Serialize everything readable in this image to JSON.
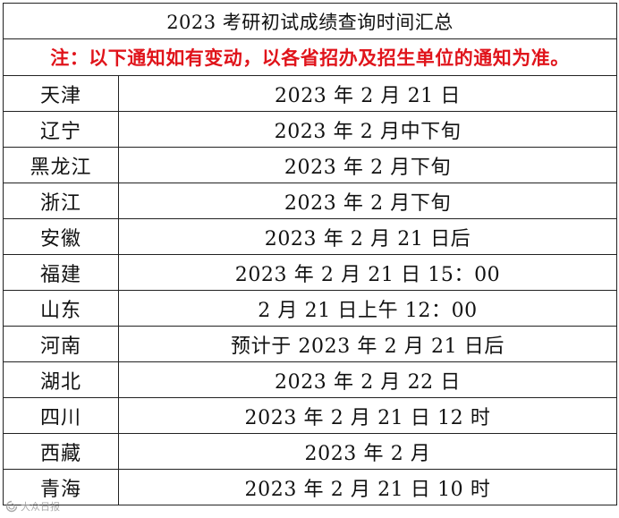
{
  "table": {
    "title": "2023 考研初试成绩查询时间汇总",
    "notice": "注：以下通知如有变动，以各省招办及招生单位的通知为准。",
    "rows": [
      {
        "province": "天津",
        "date": "2023 年 2 月 21 日"
      },
      {
        "province": "辽宁",
        "date": "2023 年 2 月中下旬"
      },
      {
        "province": "黑龙江",
        "date": "2023 年 2 月下旬"
      },
      {
        "province": "浙江",
        "date": "2023 年 2 月下旬"
      },
      {
        "province": "安徽",
        "date": "2023 年 2 月 21 日后"
      },
      {
        "province": "福建",
        "date": "2023 年 2 月 21 日 15：00"
      },
      {
        "province": "山东",
        "date": "2 月 21 日上午 12：00"
      },
      {
        "province": "河南",
        "date": "预计于 2023 年 2 月 21 日后"
      },
      {
        "province": "湖北",
        "date": "2023 年 2 月 22 日"
      },
      {
        "province": "四川",
        "date": "2023 年 2 月 21 日 12 时"
      },
      {
        "province": "西藏",
        "date": "2023 年 2 月"
      },
      {
        "province": "青海",
        "date": "2023 年 2 月 21 日 10 时"
      }
    ]
  },
  "watermark": {
    "icon": "logo-swirl-icon",
    "text": "大众日报"
  }
}
